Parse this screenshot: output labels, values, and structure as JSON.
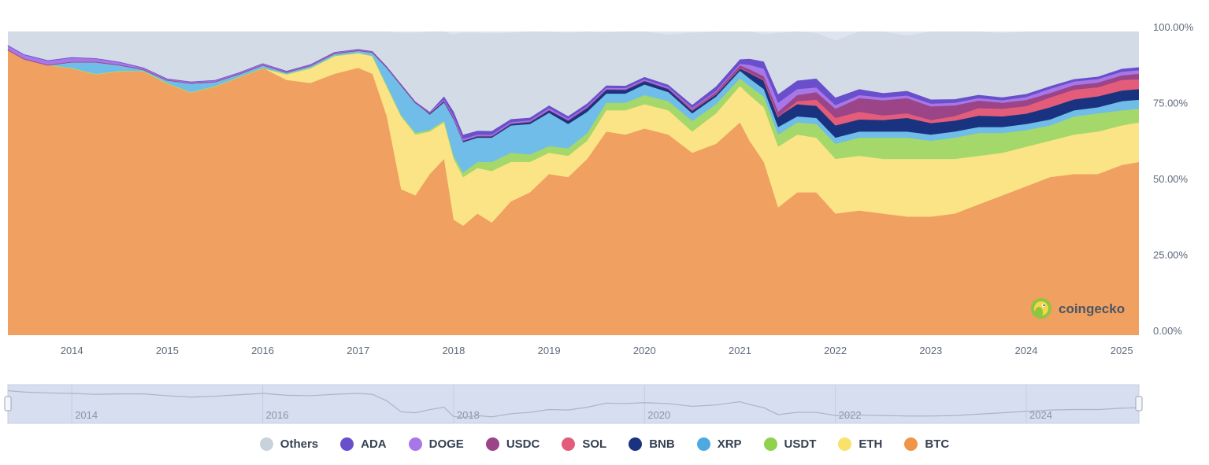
{
  "chart_data": {
    "type": "area",
    "stacked": true,
    "y_axis": {
      "ticks": [
        "100.00%",
        "75.00%",
        "50.00%",
        "25.00%",
        "0.00%"
      ],
      "range": [
        0,
        100
      ],
      "position": "right"
    },
    "x_axis": {
      "ticks": [
        "2014",
        "2015",
        "2016",
        "2017",
        "2018",
        "2019",
        "2020",
        "2021",
        "2022",
        "2023",
        "2024",
        "2025"
      ],
      "range": [
        2013.33,
        2025.18
      ]
    },
    "navigator_ticks": [
      "2014",
      "2016",
      "2018",
      "2020",
      "2022",
      "2024"
    ],
    "x": [
      2013.33,
      2013.5,
      2013.75,
      2014.0,
      2014.25,
      2014.5,
      2014.75,
      2015.0,
      2015.25,
      2015.5,
      2015.75,
      2016.0,
      2016.25,
      2016.5,
      2016.75,
      2017.0,
      2017.15,
      2017.3,
      2017.45,
      2017.6,
      2017.75,
      2017.9,
      2018.0,
      2018.1,
      2018.25,
      2018.4,
      2018.6,
      2018.8,
      2019.0,
      2019.2,
      2019.4,
      2019.6,
      2019.8,
      2020.0,
      2020.25,
      2020.5,
      2020.75,
      2021.0,
      2021.1,
      2021.25,
      2021.4,
      2021.6,
      2021.8,
      2022.0,
      2022.25,
      2022.5,
      2022.75,
      2023.0,
      2023.25,
      2023.5,
      2023.75,
      2024.0,
      2024.25,
      2024.5,
      2024.75,
      2025.0,
      2025.18
    ],
    "series": [
      {
        "name": "BTC",
        "color": "#f0a060",
        "values": [
          94,
          91,
          89,
          88,
          86,
          87,
          87,
          83,
          80,
          82,
          85,
          88,
          84,
          83,
          86,
          88,
          86,
          72,
          48,
          46,
          53,
          58,
          38,
          36,
          40,
          37,
          44,
          47,
          53,
          52,
          58,
          67,
          66,
          68,
          66,
          60,
          63,
          70,
          64,
          57,
          42,
          47,
          47,
          40,
          41,
          40,
          39,
          39,
          40,
          43,
          46,
          49,
          52,
          53,
          53,
          56,
          57
        ]
      },
      {
        "name": "ETH",
        "color": "#fbe486",
        "values": [
          0,
          0,
          0,
          0,
          0,
          0,
          0,
          0,
          0,
          0,
          0,
          0,
          2,
          5,
          6,
          5,
          6,
          10,
          24,
          20,
          14,
          12,
          20,
          16,
          15,
          17,
          13,
          10,
          7,
          7,
          6,
          7,
          8,
          8,
          8,
          7,
          10,
          12,
          15,
          18,
          20,
          19,
          18,
          18,
          18,
          18,
          19,
          19,
          18,
          16,
          14,
          13,
          12,
          13,
          14,
          13,
          13
        ]
      },
      {
        "name": "USDT",
        "color": "#a5d86a",
        "values": [
          0,
          0,
          0,
          0,
          0,
          0,
          0,
          0,
          0,
          0,
          0,
          0,
          0,
          0,
          0,
          0,
          0,
          0.2,
          0.4,
          0.6,
          0.6,
          0.6,
          1,
          1.5,
          2,
          3,
          3,
          2.5,
          2.2,
          2.5,
          2.5,
          2.5,
          2.5,
          3,
          3,
          3.5,
          3,
          2.5,
          3,
          3.5,
          4,
          4,
          4.5,
          5,
          6,
          7,
          7,
          6,
          7,
          7.5,
          6.5,
          5.5,
          5,
          6,
          6,
          5,
          4.5
        ]
      },
      {
        "name": "XRP",
        "color": "#6fbde8",
        "values": [
          0,
          0,
          0,
          2,
          4,
          2,
          0.5,
          1,
          3,
          1.5,
          1,
          1,
          0.6,
          0.8,
          0.8,
          0.8,
          1.2,
          6,
          10,
          10,
          5,
          6,
          12,
          10,
          8,
          8,
          9,
          10,
          11,
          8,
          7,
          3,
          3,
          3.5,
          3,
          2.5,
          2.5,
          2.5,
          2.5,
          2.5,
          2.5,
          2,
          2,
          2,
          2,
          2,
          2,
          2,
          2,
          2,
          2,
          2,
          2,
          2,
          2,
          3,
          3
        ]
      },
      {
        "name": "BNB",
        "color": "#1a3380",
        "values": [
          0,
          0,
          0,
          0,
          0,
          0,
          0,
          0,
          0,
          0,
          0,
          0,
          0,
          0,
          0,
          0,
          0,
          0,
          0,
          0,
          0.5,
          0.6,
          0.6,
          0.6,
          0.6,
          0.6,
          0.7,
          0.8,
          1,
          1.3,
          1.5,
          1.5,
          1.4,
          1.3,
          1.2,
          1.1,
          1,
          1,
          2,
          3,
          3.5,
          4,
          4,
          4,
          4,
          3.8,
          4.5,
          3.8,
          3.6,
          3.7,
          3.5,
          3.4,
          4,
          3.6,
          3.6,
          3.5,
          3.5
        ]
      },
      {
        "name": "SOL",
        "color": "#e35d7a",
        "values": [
          0,
          0,
          0,
          0,
          0,
          0,
          0,
          0,
          0,
          0,
          0,
          0,
          0,
          0,
          0,
          0,
          0,
          0,
          0,
          0,
          0,
          0,
          0,
          0,
          0,
          0,
          0,
          0,
          0,
          0,
          0,
          0,
          0,
          0,
          0,
          0,
          0,
          0,
          0,
          0,
          0,
          1,
          2,
          2.5,
          2.5,
          1.5,
          1.5,
          1,
          1.5,
          2.5,
          2.5,
          2.5,
          3.2,
          3.2,
          3,
          3.5,
          3.2
        ]
      },
      {
        "name": "USDC",
        "color": "#9b4488",
        "values": [
          0,
          0,
          0,
          0,
          0,
          0,
          0,
          0,
          0,
          0,
          0,
          0,
          0,
          0,
          0,
          0,
          0,
          0,
          0,
          0,
          0,
          0,
          0,
          0,
          0,
          0,
          0,
          0,
          0,
          0,
          0,
          0,
          0,
          0,
          0,
          0.3,
          0.5,
          0.8,
          1,
          1.2,
          1.5,
          2,
          2.5,
          3,
          4.5,
          5,
          5,
          4.5,
          3.5,
          2.5,
          2,
          2,
          1.5,
          1.5,
          1.5,
          1.5,
          1.8
        ]
      },
      {
        "name": "DOGE",
        "color": "#a777e8",
        "values": [
          1.5,
          1.5,
          1.5,
          1.5,
          1.2,
          1,
          0.6,
          0.5,
          0.5,
          0.5,
          0.5,
          0.5,
          0.4,
          0.4,
          0.4,
          0.4,
          0.3,
          0.3,
          0.3,
          0.3,
          0.4,
          0.4,
          0.5,
          0.5,
          0.4,
          0.4,
          0.4,
          0.4,
          0.5,
          0.4,
          0.4,
          0.4,
          0.4,
          0.4,
          0.4,
          0.4,
          0.4,
          0.5,
          1.5,
          2.5,
          3,
          2,
          1.5,
          1.2,
          1,
          0.9,
          0.9,
          0.9,
          0.9,
          0.8,
          0.8,
          1,
          1.4,
          1.2,
          1.2,
          1.2,
          1.2
        ]
      },
      {
        "name": "ADA",
        "color": "#6a4fcc",
        "values": [
          0,
          0,
          0,
          0,
          0,
          0,
          0,
          0,
          0,
          0,
          0,
          0,
          0,
          0,
          0,
          0,
          0,
          0,
          0,
          0,
          0,
          1,
          1.5,
          1.4,
          1.3,
          1.2,
          1,
          0.9,
          0.9,
          0.9,
          0.9,
          0.8,
          0.8,
          0.8,
          0.8,
          1,
          1.5,
          1.5,
          2,
          2.4,
          2.8,
          2.8,
          3,
          2.5,
          2,
          1.5,
          1.5,
          1.4,
          1.2,
          1.1,
          1,
          1,
          0.9,
          0.8,
          0.8,
          1,
          1
        ]
      },
      {
        "name": "Others",
        "color": "#d3dbe6",
        "values": [
          4.5,
          7.5,
          9.5,
          8.5,
          8.8,
          10,
          11.9,
          15.5,
          16.5,
          16,
          13.5,
          10.5,
          13,
          10.8,
          6.8,
          5.8,
          6.5,
          11.5,
          16.9,
          22.7,
          26.5,
          21.4,
          25.4,
          33.6,
          32.3,
          32.2,
          28.5,
          28.8,
          24.3,
          27.5,
          23.8,
          17.5,
          17.9,
          15.4,
          16.6,
          23.8,
          18.5,
          9.2,
          9,
          9,
          20.2,
          16.2,
          15,
          18.8,
          19,
          20.9,
          18.2,
          22.4,
          22.5,
          21.4,
          21.2,
          20.6,
          19.1,
          18.7,
          17.4,
          13.5,
          12.8
        ]
      }
    ]
  },
  "legend": [
    {
      "label": "Others",
      "color": "#c9d2dc"
    },
    {
      "label": "ADA",
      "color": "#6a4fcc"
    },
    {
      "label": "DOGE",
      "color": "#a777e8"
    },
    {
      "label": "USDC",
      "color": "#9b4488"
    },
    {
      "label": "SOL",
      "color": "#e35d7a"
    },
    {
      "label": "BNB",
      "color": "#1a3380"
    },
    {
      "label": "XRP",
      "color": "#4ea9e0"
    },
    {
      "label": "USDT",
      "color": "#8ed24e"
    },
    {
      "label": "ETH",
      "color": "#f8e16c"
    },
    {
      "label": "BTC",
      "color": "#f0944a"
    }
  ],
  "watermark": {
    "text": "coingecko",
    "icon": "gecko-logo-icon"
  }
}
